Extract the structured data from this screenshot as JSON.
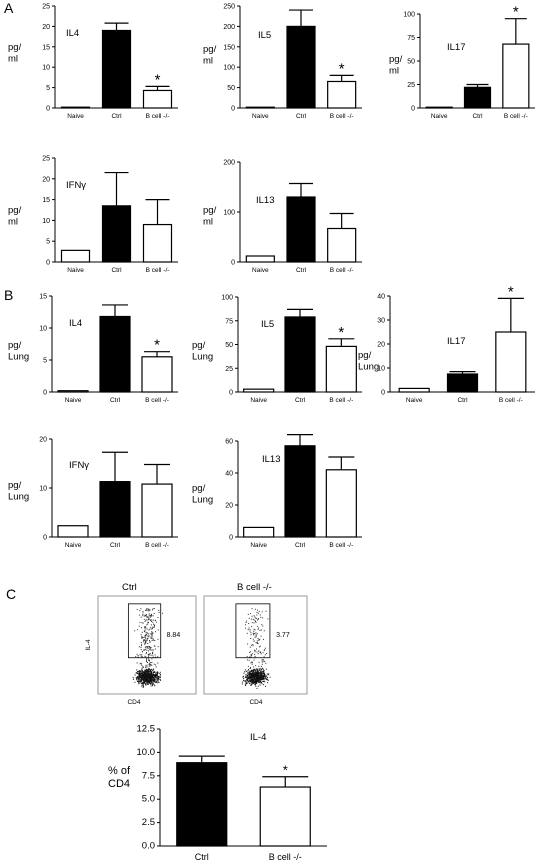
{
  "panel_letters": [
    "A",
    "B",
    "C"
  ],
  "colors": {
    "ctrl": "#000000",
    "bcell": "#ffffff",
    "naive": "#ffffff",
    "axis": "#000000"
  },
  "chart_data": [
    {
      "type": "bar",
      "panel": "A",
      "title": "IL4",
      "ylabel": [
        "pg/",
        "ml"
      ],
      "categories": [
        "Naive",
        "Ctrl",
        "B cell -/-"
      ],
      "fill": [
        "#ffffff",
        "#000000",
        "#ffffff"
      ],
      "values": [
        0.2,
        19,
        4.3
      ],
      "errors": [
        0,
        1.8,
        1.0
      ],
      "ylim": [
        0,
        25
      ],
      "yticks": [
        "0",
        "5",
        "10",
        "15",
        "20",
        "25"
      ],
      "significance": [
        null,
        null,
        "*"
      ]
    },
    {
      "type": "bar",
      "panel": "A",
      "title": "IL5",
      "ylabel": [
        "pg/",
        "ml"
      ],
      "categories": [
        "Naive",
        "Ctrl",
        "B cell -/-"
      ],
      "fill": [
        "#ffffff",
        "#000000",
        "#ffffff"
      ],
      "values": [
        0,
        200,
        65
      ],
      "errors": [
        0,
        40,
        15
      ],
      "ylim": [
        0,
        250
      ],
      "yticks": [
        "0",
        "50",
        "100",
        "150",
        "200",
        "250"
      ],
      "significance": [
        null,
        null,
        "*"
      ]
    },
    {
      "type": "bar",
      "panel": "A",
      "title": "IL17",
      "ylabel": [
        "pg/",
        "ml"
      ],
      "categories": [
        "Naive",
        "Ctrl",
        "B cell -/-"
      ],
      "fill": [
        "#ffffff",
        "#000000",
        "#ffffff"
      ],
      "values": [
        0,
        22,
        68
      ],
      "errors": [
        0,
        3,
        27
      ],
      "ylim": [
        0,
        100
      ],
      "yticks": [
        "0",
        "25",
        "50",
        "75",
        "100"
      ],
      "significance": [
        null,
        null,
        "*"
      ]
    },
    {
      "type": "bar",
      "panel": "A",
      "title": "IFNγ",
      "ylabel": [
        "pg/",
        "ml"
      ],
      "categories": [
        "Naive",
        "Ctrl",
        "B cell -/-"
      ],
      "fill": [
        "#ffffff",
        "#000000",
        "#ffffff"
      ],
      "values": [
        2.8,
        13.5,
        9
      ],
      "errors": [
        0,
        8,
        6
      ],
      "ylim": [
        0,
        25
      ],
      "yticks": [
        "0",
        "5",
        "10",
        "15",
        "20",
        "25"
      ],
      "significance": [
        null,
        null,
        null
      ]
    },
    {
      "type": "bar",
      "panel": "A",
      "title": "IL13",
      "ylabel": [
        "pg/",
        "ml"
      ],
      "categories": [
        "Naive",
        "Ctrl",
        "B cell -/-"
      ],
      "fill": [
        "#ffffff",
        "#000000",
        "#ffffff"
      ],
      "values": [
        12,
        130,
        67
      ],
      "errors": [
        0,
        27,
        30
      ],
      "ylim": [
        0,
        200
      ],
      "yticks": [
        "0",
        "100",
        "200"
      ],
      "significance": [
        null,
        null,
        null
      ]
    },
    {
      "type": "bar",
      "panel": "B",
      "title": "IL4",
      "ylabel": [
        "pg/",
        "Lung"
      ],
      "categories": [
        "Naive",
        "Ctrl",
        "B cell -/-"
      ],
      "fill": [
        "#ffffff",
        "#000000",
        "#ffffff"
      ],
      "values": [
        0.2,
        11.8,
        5.5
      ],
      "errors": [
        0,
        1.8,
        0.8
      ],
      "ylim": [
        0,
        15
      ],
      "yticks": [
        "0",
        "5",
        "10",
        "15"
      ],
      "significance": [
        null,
        null,
        "*"
      ]
    },
    {
      "type": "bar",
      "panel": "B",
      "title": "IL5",
      "ylabel": [
        "pg/",
        "Lung"
      ],
      "categories": [
        "Naive",
        "Ctrl",
        "B cell -/-"
      ],
      "fill": [
        "#ffffff",
        "#000000",
        "#ffffff"
      ],
      "values": [
        3,
        79,
        48
      ],
      "errors": [
        0,
        8,
        8
      ],
      "ylim": [
        0,
        100
      ],
      "yticks": [
        "0",
        "25",
        "50",
        "75",
        "100"
      ],
      "significance": [
        null,
        null,
        "*"
      ]
    },
    {
      "type": "bar",
      "panel": "B",
      "title": "IL17",
      "ylabel": [
        "pg/",
        "Lung"
      ],
      "categories": [
        "Naive",
        "Ctrl",
        "B cell -/-"
      ],
      "fill": [
        "#ffffff",
        "#000000",
        "#ffffff"
      ],
      "values": [
        1.5,
        7.5,
        25
      ],
      "errors": [
        0,
        1,
        14
      ],
      "ylim": [
        0,
        40
      ],
      "yticks": [
        "0",
        "10",
        "20",
        "30",
        "40"
      ],
      "significance": [
        null,
        null,
        "*"
      ]
    },
    {
      "type": "bar",
      "panel": "B",
      "title": "IFNγ",
      "ylabel": [
        "pg/",
        "Lung"
      ],
      "categories": [
        "Naive",
        "Ctrl",
        "B cell -/-"
      ],
      "fill": [
        "#ffffff",
        "#000000",
        "#ffffff"
      ],
      "values": [
        2.3,
        11.3,
        10.8
      ],
      "errors": [
        0,
        6,
        4
      ],
      "ylim": [
        0,
        20
      ],
      "yticks": [
        "0",
        "10",
        "20"
      ],
      "significance": [
        null,
        null,
        null
      ]
    },
    {
      "type": "bar",
      "panel": "B",
      "title": "IL13",
      "ylabel": [
        "pg/",
        "Lung"
      ],
      "categories": [
        "Naive",
        "Ctrl",
        "B cell -/-"
      ],
      "fill": [
        "#ffffff",
        "#000000",
        "#ffffff"
      ],
      "values": [
        6,
        57,
        42
      ],
      "errors": [
        0,
        7,
        8
      ],
      "ylim": [
        0,
        60
      ],
      "yticks": [
        "0",
        "20",
        "40",
        "60"
      ],
      "significance": [
        null,
        null,
        null
      ]
    },
    {
      "type": "scatter",
      "panel": "C",
      "title": "Ctrl",
      "xlabel": "CD4",
      "ylabel": "IL-4",
      "gate_percent": "8.84"
    },
    {
      "type": "scatter",
      "panel": "C",
      "title": "B cell -/-",
      "xlabel": "CD4",
      "ylabel": "",
      "gate_percent": "3.77"
    },
    {
      "type": "bar",
      "panel": "C",
      "title": "IL-4",
      "ylabel": [
        "% of",
        "CD4"
      ],
      "categories": [
        "Ctrl",
        "B cell -/-"
      ],
      "fill": [
        "#000000",
        "#ffffff"
      ],
      "values": [
        8.9,
        6.3
      ],
      "errors": [
        0.7,
        1.1
      ],
      "ylim": [
        0,
        12.5
      ],
      "yticks": [
        "0.0",
        "2.5",
        "5.0",
        "7.5",
        "10.0",
        "12.5"
      ],
      "significance": [
        null,
        "*"
      ]
    }
  ]
}
